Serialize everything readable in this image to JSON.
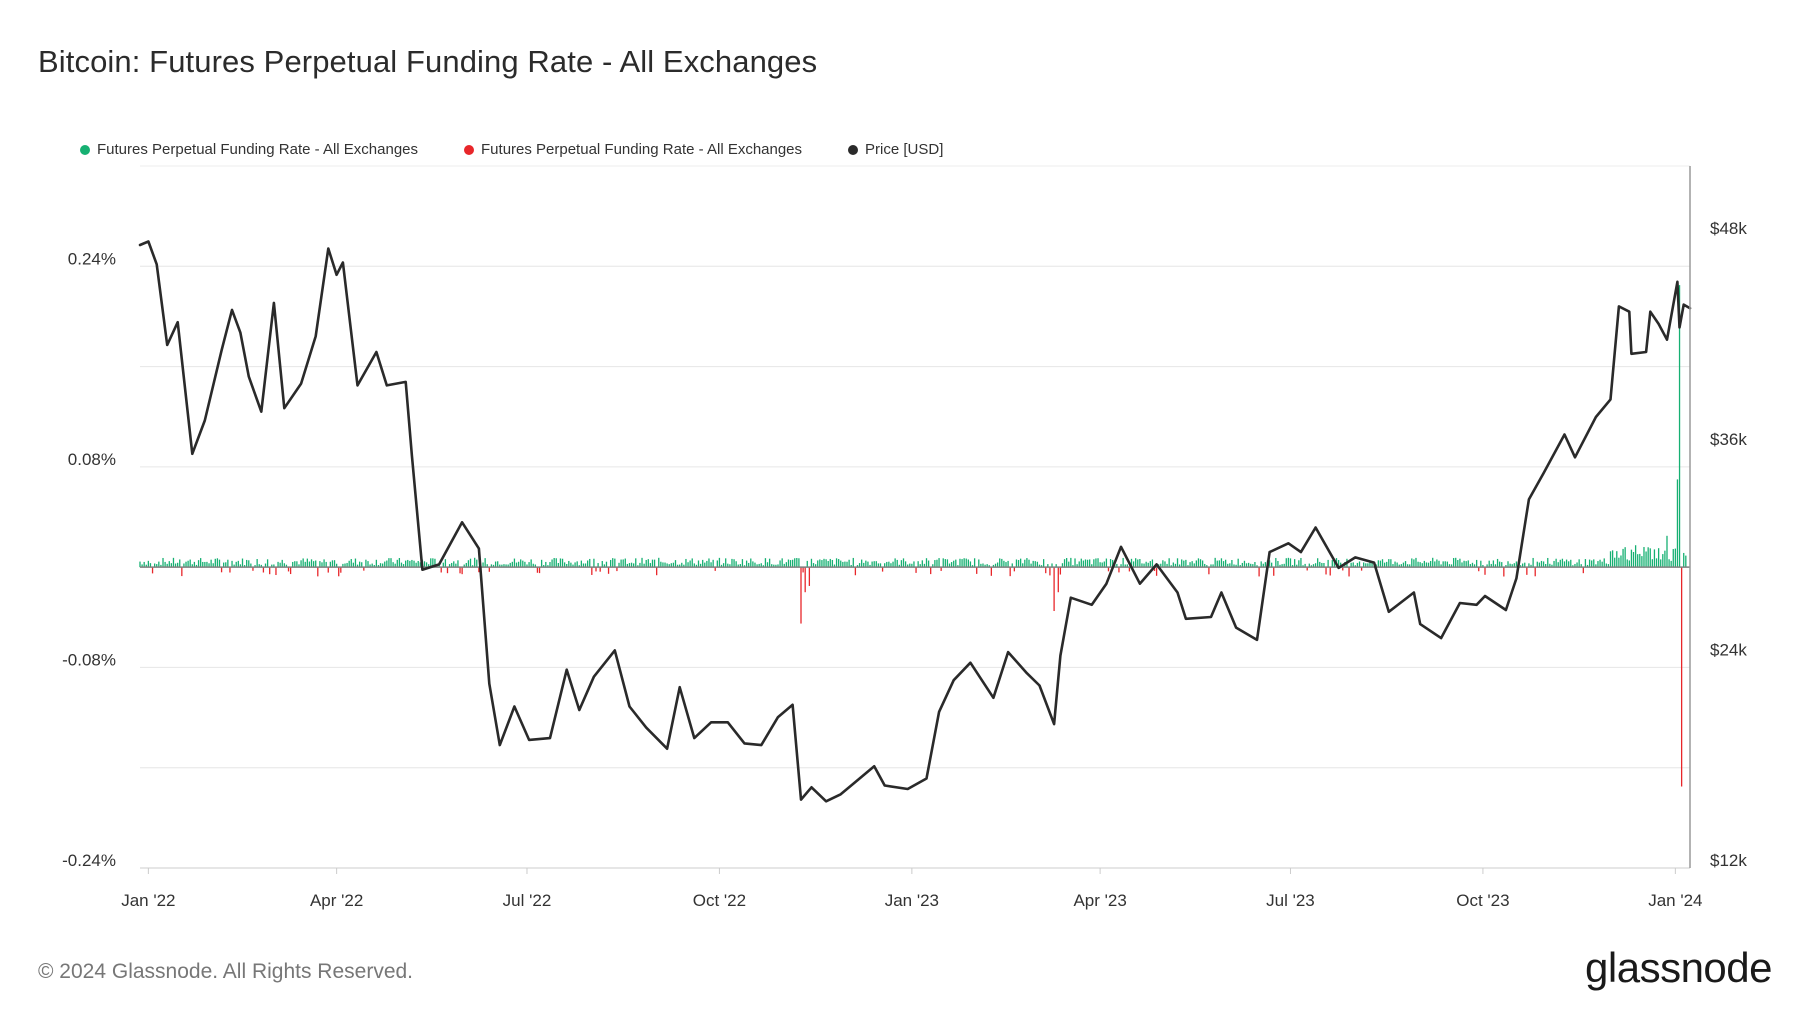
{
  "title": "Bitcoin: Futures Perpetual Funding Rate - All Exchanges",
  "legend": [
    {
      "label": "Futures Perpetual Funding Rate - All Exchanges",
      "color": "#16b072"
    },
    {
      "label": "Futures Perpetual Funding Rate - All Exchanges",
      "color": "#e8262a"
    },
    {
      "label": "Price [USD]",
      "color": "#2a2a2a"
    }
  ],
  "footer": "© 2024 Glassnode. All Rights Reserved.",
  "brand": "glassnode",
  "chart_data": {
    "type": "bar+line",
    "title": "Bitcoin: Futures Perpetual Funding Rate - All Exchanges",
    "x_range": [
      "2021-12-28",
      "2024-01-08"
    ],
    "x_ticks": [
      {
        "label": "Jan '22",
        "date": "2022-01-01"
      },
      {
        "label": "Apr '22",
        "date": "2022-04-01"
      },
      {
        "label": "Jul '22",
        "date": "2022-07-01"
      },
      {
        "label": "Oct '22",
        "date": "2022-10-01"
      },
      {
        "label": "Jan '23",
        "date": "2023-01-01"
      },
      {
        "label": "Apr '23",
        "date": "2023-04-01"
      },
      {
        "label": "Jul '23",
        "date": "2023-07-01"
      },
      {
        "label": "Oct '23",
        "date": "2023-10-01"
      },
      {
        "label": "Jan '24",
        "date": "2024-01-01"
      }
    ],
    "left_axis": {
      "ylim": [
        -0.24,
        0.32
      ],
      "ticks": [
        "0.24%",
        "0.08%",
        "-0.08%",
        "-0.24%"
      ],
      "tick_values": [
        0.24,
        0.08,
        -0.08,
        -0.24
      ],
      "unit": "%"
    },
    "right_axis": {
      "ylim": [
        12000,
        52000
      ],
      "ticks": [
        "$48k",
        "$36k",
        "$24k",
        "$12k"
      ],
      "tick_values": [
        48000,
        36000,
        24000,
        12000
      ],
      "unit": "USD"
    },
    "gridlines": [
      0.24,
      0.16,
      0.08,
      0,
      -0.08,
      -0.16
    ],
    "funding_rate": {
      "positive_color": "#16b072",
      "negative_color": "#e8262a",
      "baseline_daily": 0.005,
      "spikes": [
        {
          "date": "2022-11-09",
          "value": -0.045
        },
        {
          "date": "2022-11-11",
          "value": -0.02
        },
        {
          "date": "2022-11-13",
          "value": -0.015
        },
        {
          "date": "2023-03-10",
          "value": -0.035
        },
        {
          "date": "2023-03-12",
          "value": -0.02
        },
        {
          "date": "2023-12-20",
          "value": 0.015
        },
        {
          "date": "2023-12-28",
          "value": 0.025
        },
        {
          "date": "2024-01-02",
          "value": 0.07
        },
        {
          "date": "2024-01-03",
          "value": 0.225
        },
        {
          "date": "2024-01-04",
          "value": -0.175
        }
      ]
    },
    "series": [
      {
        "name": "Price [USD]",
        "color": "#2a2a2a",
        "points": [
          [
            "2021-12-28",
            47500
          ],
          [
            "2022-01-01",
            47700
          ],
          [
            "2022-01-05",
            46400
          ],
          [
            "2022-01-10",
            41800
          ],
          [
            "2022-01-15",
            43100
          ],
          [
            "2022-01-22",
            35600
          ],
          [
            "2022-01-28",
            37500
          ],
          [
            "2022-02-05",
            41500
          ],
          [
            "2022-02-10",
            43800
          ],
          [
            "2022-02-14",
            42500
          ],
          [
            "2022-02-18",
            40000
          ],
          [
            "2022-02-24",
            38000
          ],
          [
            "2022-03-02",
            44200
          ],
          [
            "2022-03-07",
            38200
          ],
          [
            "2022-03-15",
            39600
          ],
          [
            "2022-03-22",
            42300
          ],
          [
            "2022-03-28",
            47300
          ],
          [
            "2022-04-01",
            45800
          ],
          [
            "2022-04-04",
            46500
          ],
          [
            "2022-04-11",
            39500
          ],
          [
            "2022-04-20",
            41400
          ],
          [
            "2022-04-25",
            39500
          ],
          [
            "2022-05-04",
            39700
          ],
          [
            "2022-05-07",
            35500
          ],
          [
            "2022-05-12",
            29000
          ],
          [
            "2022-05-20",
            29300
          ],
          [
            "2022-05-31",
            31700
          ],
          [
            "2022-06-08",
            30200
          ],
          [
            "2022-06-13",
            22500
          ],
          [
            "2022-06-18",
            19000
          ],
          [
            "2022-06-25",
            21200
          ],
          [
            "2022-07-02",
            19300
          ],
          [
            "2022-07-12",
            19400
          ],
          [
            "2022-07-20",
            23300
          ],
          [
            "2022-07-26",
            21000
          ],
          [
            "2022-08-02",
            22900
          ],
          [
            "2022-08-12",
            24400
          ],
          [
            "2022-08-19",
            21200
          ],
          [
            "2022-08-27",
            20000
          ],
          [
            "2022-09-06",
            18800
          ],
          [
            "2022-09-12",
            22300
          ],
          [
            "2022-09-19",
            19400
          ],
          [
            "2022-09-27",
            20300
          ],
          [
            "2022-10-05",
            20300
          ],
          [
            "2022-10-13",
            19100
          ],
          [
            "2022-10-21",
            19000
          ],
          [
            "2022-10-29",
            20600
          ],
          [
            "2022-11-05",
            21300
          ],
          [
            "2022-11-09",
            15900
          ],
          [
            "2022-11-14",
            16600
          ],
          [
            "2022-11-21",
            15800
          ],
          [
            "2022-11-28",
            16200
          ],
          [
            "2022-12-05",
            16900
          ],
          [
            "2022-12-14",
            17800
          ],
          [
            "2022-12-19",
            16700
          ],
          [
            "2022-12-30",
            16500
          ],
          [
            "2023-01-08",
            17100
          ],
          [
            "2023-01-14",
            20900
          ],
          [
            "2023-01-21",
            22700
          ],
          [
            "2023-01-29",
            23700
          ],
          [
            "2023-02-09",
            21700
          ],
          [
            "2023-02-16",
            24300
          ],
          [
            "2023-02-25",
            23100
          ],
          [
            "2023-03-03",
            22400
          ],
          [
            "2023-03-10",
            20200
          ],
          [
            "2023-03-13",
            24100
          ],
          [
            "2023-03-18",
            27400
          ],
          [
            "2023-03-28",
            27000
          ],
          [
            "2023-04-04",
            28200
          ],
          [
            "2023-04-11",
            30300
          ],
          [
            "2023-04-20",
            28200
          ],
          [
            "2023-04-28",
            29300
          ],
          [
            "2023-05-08",
            27700
          ],
          [
            "2023-05-12",
            26200
          ],
          [
            "2023-05-24",
            26300
          ],
          [
            "2023-05-29",
            27700
          ],
          [
            "2023-06-05",
            25700
          ],
          [
            "2023-06-15",
            25000
          ],
          [
            "2023-06-21",
            30000
          ],
          [
            "2023-06-30",
            30500
          ],
          [
            "2023-07-06",
            30000
          ],
          [
            "2023-07-13",
            31400
          ],
          [
            "2023-07-24",
            29100
          ],
          [
            "2023-08-01",
            29700
          ],
          [
            "2023-08-10",
            29400
          ],
          [
            "2023-08-17",
            26600
          ],
          [
            "2023-08-29",
            27700
          ],
          [
            "2023-09-01",
            25900
          ],
          [
            "2023-09-11",
            25100
          ],
          [
            "2023-09-20",
            27100
          ],
          [
            "2023-09-28",
            27000
          ],
          [
            "2023-10-02",
            27500
          ],
          [
            "2023-10-12",
            26700
          ],
          [
            "2023-10-17",
            28500
          ],
          [
            "2023-10-23",
            33000
          ],
          [
            "2023-10-30",
            34500
          ],
          [
            "2023-11-09",
            36700
          ],
          [
            "2023-11-14",
            35400
          ],
          [
            "2023-11-24",
            37700
          ],
          [
            "2023-12-01",
            38700
          ],
          [
            "2023-12-05",
            44000
          ],
          [
            "2023-12-10",
            43700
          ],
          [
            "2023-12-11",
            41300
          ],
          [
            "2023-12-18",
            41400
          ],
          [
            "2023-12-20",
            43700
          ],
          [
            "2023-12-24",
            43000
          ],
          [
            "2023-12-28",
            42100
          ],
          [
            "2024-01-02",
            45400
          ],
          [
            "2024-01-03",
            42800
          ],
          [
            "2024-01-05",
            44100
          ],
          [
            "2024-01-08",
            43900
          ]
        ]
      }
    ]
  }
}
